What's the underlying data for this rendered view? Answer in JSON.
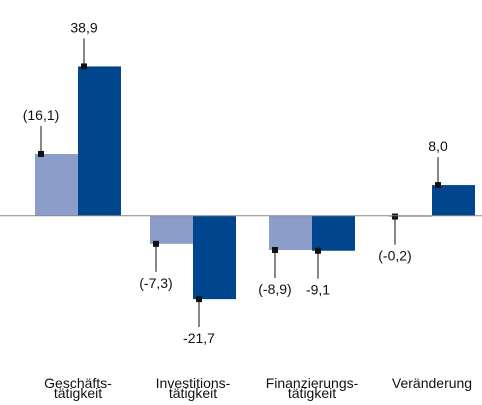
{
  "chart_data": {
    "type": "bar",
    "categories": [
      "Geschäfts-\ntätigkeit",
      "Investitions-\ntätigkeit",
      "Finanzierungs-\ntätigkeit",
      "Veränderung"
    ],
    "series": [
      {
        "color": "#8c9dc9",
        "values": [
          16.1,
          -7.3,
          -8.9,
          -0.2
        ],
        "value_labels": [
          "(16,1)",
          "(-7,3)",
          "(-8,9)",
          "(-0,2)"
        ]
      },
      {
        "color": "#00468f",
        "values": [
          38.9,
          -21.7,
          -9.1,
          8.0
        ],
        "value_labels": [
          "38,9",
          "-21,7",
          "-9,1",
          "8,0"
        ]
      }
    ],
    "ylim": [
      -30,
      45
    ]
  }
}
